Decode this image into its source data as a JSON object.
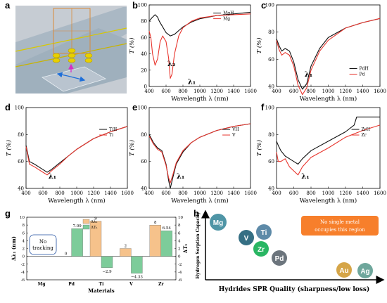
{
  "colors": {
    "black_line": "#111111",
    "red_line": "#e8352d",
    "bar_orange": "#f6c28b",
    "bar_green": "#7dcc9a",
    "note_bg": "#f77f2b"
  },
  "panels": {
    "a": "a",
    "b": "b",
    "c": "c",
    "d": "d",
    "e": "e",
    "f": "f",
    "g": "g",
    "h": "h"
  },
  "spectra": {
    "xlabel": "Wavelength λ (nm)",
    "ylabel": "T (%)",
    "xticks": [
      "400",
      "600",
      "800",
      "1000",
      "1200",
      "1400",
      "1600"
    ],
    "yticks": [
      "40",
      "60",
      "80",
      "100"
    ],
    "yticks_b": [
      "0",
      "20",
      "40",
      "60",
      "80",
      "100"
    ]
  },
  "chart_data": [
    {
      "panel": "b",
      "type": "line",
      "xlim": [
        400,
        1600
      ],
      "ylim": [
        0,
        100
      ],
      "series": [
        {
          "name": "MgH",
          "color": "#111111",
          "x": [
            400,
            430,
            470,
            500,
            520,
            560,
            600,
            650,
            700,
            800,
            900,
            1000,
            1200,
            1400,
            1600
          ],
          "y": [
            80,
            84,
            88,
            85,
            80,
            73,
            66,
            62,
            64,
            73,
            79,
            83,
            87,
            89,
            91
          ]
        },
        {
          "name": "Mg",
          "color": "#e8352d",
          "x": [
            400,
            420,
            440,
            470,
            500,
            530,
            560,
            600,
            630,
            650,
            670,
            700,
            750,
            800,
            900,
            1000,
            1200,
            1400,
            1600
          ],
          "y": [
            68,
            60,
            40,
            26,
            34,
            55,
            62,
            55,
            35,
            10,
            15,
            40,
            62,
            72,
            80,
            84,
            87,
            88,
            89
          ]
        }
      ],
      "annotations": [
        "λ₂",
        "λ₁"
      ]
    },
    {
      "panel": "c",
      "type": "line",
      "xlim": [
        400,
        1600
      ],
      "ylim": [
        40,
        100
      ],
      "series": [
        {
          "name": "PdH",
          "color": "#111111",
          "x": [
            400,
            430,
            460,
            500,
            550,
            600,
            650,
            700,
            750,
            800,
            900,
            1000,
            1200,
            1400,
            1600
          ],
          "y": [
            75,
            70,
            66,
            68,
            66,
            58,
            45,
            38,
            42,
            55,
            68,
            76,
            83,
            87,
            90
          ]
        },
        {
          "name": "Pd",
          "color": "#e8352d",
          "x": [
            400,
            430,
            460,
            500,
            550,
            600,
            650,
            700,
            750,
            800,
            900,
            1000,
            1200,
            1400,
            1600
          ],
          "y": [
            74,
            67,
            63,
            65,
            63,
            55,
            41,
            34,
            39,
            52,
            66,
            74,
            83,
            87,
            90
          ]
        }
      ],
      "annotations": [
        "λ₁"
      ]
    },
    {
      "panel": "d",
      "type": "line",
      "xlim": [
        400,
        1600
      ],
      "ylim": [
        40,
        100
      ],
      "series": [
        {
          "name": "TiH",
          "color": "#111111",
          "x": [
            400,
            440,
            500,
            550,
            600,
            650,
            700,
            800,
            900,
            1000,
            1200,
            1400,
            1600
          ],
          "y": [
            72,
            60,
            58,
            56,
            54,
            52,
            54,
            59,
            64,
            69,
            77,
            82,
            86
          ]
        },
        {
          "name": "Ti",
          "color": "#e8352d",
          "x": [
            400,
            440,
            500,
            550,
            600,
            650,
            700,
            800,
            900,
            1000,
            1200,
            1400,
            1600
          ],
          "y": [
            71,
            58,
            56,
            54,
            52,
            50,
            53,
            58,
            64,
            69,
            77,
            82,
            86
          ]
        }
      ],
      "annotations": [
        "λ₁"
      ]
    },
    {
      "panel": "e",
      "type": "line",
      "xlim": [
        400,
        1600
      ],
      "ylim": [
        40,
        100
      ],
      "series": [
        {
          "name": "VH",
          "color": "#111111",
          "x": [
            400,
            450,
            500,
            550,
            600,
            630,
            650,
            680,
            720,
            800,
            900,
            1000,
            1200,
            1400,
            1600
          ],
          "y": [
            80,
            74,
            70,
            68,
            58,
            46,
            40,
            48,
            58,
            67,
            74,
            78,
            83,
            86,
            88
          ]
        },
        {
          "name": "V",
          "color": "#e8352d",
          "x": [
            400,
            450,
            500,
            550,
            600,
            630,
            650,
            680,
            720,
            800,
            900,
            1000,
            1200,
            1400,
            1600
          ],
          "y": [
            79,
            73,
            69,
            67,
            57,
            48,
            44,
            50,
            59,
            68,
            74,
            78,
            83,
            86,
            88
          ]
        }
      ],
      "annotations": [
        "λ₁"
      ]
    },
    {
      "panel": "f",
      "type": "line",
      "xlim": [
        400,
        1600
      ],
      "ylim": [
        40,
        100
      ],
      "series": [
        {
          "name": "ZrH",
          "color": "#111111",
          "x": [
            400,
            420,
            450,
            500,
            550,
            600,
            650,
            700,
            800,
            1000,
            1200,
            1300,
            1330,
            1400,
            1600
          ],
          "y": [
            75,
            72,
            68,
            64,
            62,
            60,
            58,
            62,
            68,
            75,
            82,
            87,
            93,
            93,
            93
          ]
        },
        {
          "name": "Zr",
          "color": "#e8352d",
          "x": [
            400,
            420,
            450,
            500,
            550,
            600,
            650,
            700,
            800,
            1000,
            1200,
            1400,
            1600
          ],
          "y": [
            67,
            60,
            60,
            62,
            56,
            53,
            50,
            56,
            63,
            70,
            78,
            83,
            87
          ]
        }
      ],
      "annotations": [
        "λ₁"
      ]
    },
    {
      "panel": "g",
      "type": "bar",
      "categories": [
        "Mg",
        "Pd",
        "Ti",
        "V",
        "Zr"
      ],
      "xlabel": "Materials",
      "ylabel_left": "Δλ₁ (nm)",
      "ylabel_right": "ΔT₁",
      "ylim_left": [
        -6,
        10
      ],
      "ylim_right": [
        -6,
        10
      ],
      "yticks": [
        "-6",
        "-4",
        "-2",
        "0",
        "2",
        "4",
        "6",
        "8",
        "10"
      ],
      "series": [
        {
          "name": "Δλ₁",
          "color": "#f6c28b",
          "values": [
            null,
            0,
            9,
            2,
            8
          ],
          "labels": [
            "",
            "0",
            "9",
            "2",
            "8"
          ]
        },
        {
          "name": "ΔT₁",
          "color": "#7dcc9a",
          "values": [
            null,
            7.09,
            -2.9,
            -4.33,
            6.54
          ],
          "labels": [
            "",
            "7.09",
            "−2.9",
            "−4.33",
            "6.54"
          ]
        }
      ],
      "note": [
        "No",
        "tracking"
      ]
    },
    {
      "panel": "h",
      "type": "scatter",
      "xlabel": "Hydrides SPR Quality (sharpness/low loss)",
      "ylabel": "Hydrogen Sorption Capacity",
      "points": [
        {
          "label": "Mg",
          "color": "#4f95a6"
        },
        {
          "label": "V",
          "color": "#356f84"
        },
        {
          "label": "Ti",
          "color": "#5d8aa8"
        },
        {
          "label": "Zr",
          "color": "#29b663"
        },
        {
          "label": "Pd",
          "color": "#6c757d"
        },
        {
          "label": "Au",
          "color": "#d5a548"
        },
        {
          "label": "Ag",
          "color": "#6fa79c"
        }
      ],
      "note": [
        "No single metal",
        "occupies this region"
      ]
    }
  ]
}
